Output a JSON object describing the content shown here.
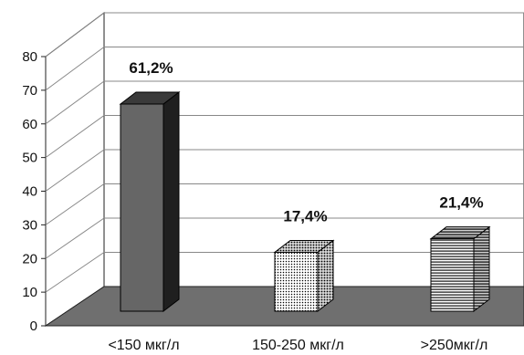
{
  "chart_data": {
    "type": "bar",
    "categories": [
      "<150 мкг/л",
      "150-250 мкг/л",
      ">250мкг/л"
    ],
    "values": [
      61.2,
      17.4,
      21.4
    ],
    "data_labels": [
      "61,2%",
      "17,4%",
      "21,4%"
    ],
    "title": "",
    "xlabel": "",
    "ylabel": "",
    "ylim": [
      0,
      80
    ],
    "yticks": [
      "0",
      "10",
      "20",
      "30",
      "40",
      "50",
      "60",
      "70",
      "80"
    ],
    "grid": true,
    "legend": "none",
    "bar_fills": [
      "solid-dark-gray",
      "dotted",
      "horizontal-lines"
    ],
    "colors": {
      "floor": "#6f6f6f",
      "bar1_front": "#666666",
      "bar1_side": "#1f1f1f",
      "bar1_top": "#3a3a3a",
      "grid": "#888888"
    }
  }
}
